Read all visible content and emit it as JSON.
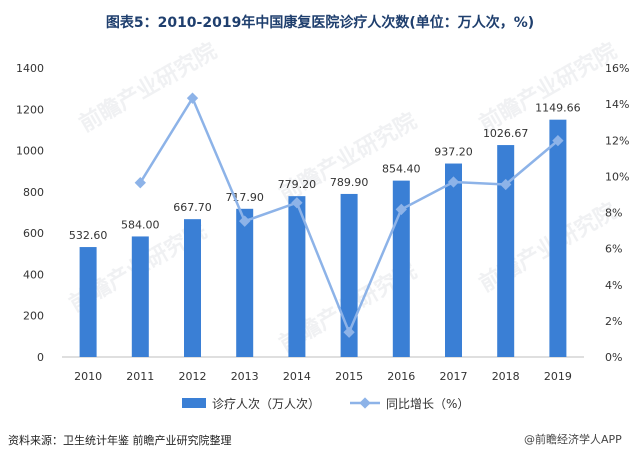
{
  "title": "图表5：2010-2019年中国康复医院诊疗人次数(单位：万人次，%)",
  "source": "资料来源：卫生统计年鉴 前瞻产业研究院整理",
  "badge": "@前瞻经济学人APP",
  "watermark": "前瞻产业研究院",
  "colors": {
    "bar": "#3a7fd5",
    "line": "#8db3e8",
    "axis_text": "#333333",
    "title": "#1f3f6e"
  },
  "chart_data": {
    "type": "bar",
    "categories": [
      "2010",
      "2011",
      "2012",
      "2013",
      "2014",
      "2015",
      "2016",
      "2017",
      "2018",
      "2019"
    ],
    "series": [
      {
        "name": "诊疗人次（万人次）",
        "type": "bar",
        "axis": "left",
        "values": [
          532.6,
          584.0,
          667.7,
          717.9,
          779.2,
          789.9,
          854.4,
          937.2,
          1026.67,
          1149.66
        ],
        "labels": [
          "532.60",
          "584.00",
          "667.70",
          "717.90",
          "779.20",
          "789.90",
          "854.40",
          "937.20",
          "1026.67",
          "1149.66"
        ]
      },
      {
        "name": "同比增长（%）",
        "type": "line",
        "axis": "right",
        "values": [
          null,
          9.65,
          14.33,
          7.52,
          8.54,
          1.37,
          8.17,
          9.69,
          9.55,
          11.98
        ]
      }
    ],
    "ylim_left": [
      0,
      1400
    ],
    "yticks_left": [
      "0",
      "200",
      "400",
      "600",
      "800",
      "1000",
      "1200",
      "1400"
    ],
    "ylim_right": [
      0,
      16
    ],
    "yticks_right": [
      "0%",
      "2%",
      "4%",
      "6%",
      "8%",
      "10%",
      "12%",
      "14%",
      "16%"
    ],
    "legend_position": "bottom",
    "grid": false
  }
}
